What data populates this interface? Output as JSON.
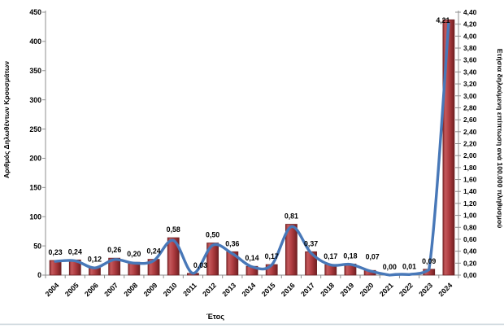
{
  "chart_data": {
    "type": "bar",
    "subtype": "combo-bar-line-dual-axis",
    "title": "",
    "xlabel": "Έτος",
    "categories": [
      "2004",
      "2005",
      "2006",
      "2007",
      "2008",
      "2009",
      "2010",
      "2011",
      "2012",
      "2013",
      "2014",
      "2015",
      "2016",
      "2017",
      "2018",
      "2019",
      "2020",
      "2021",
      "2022",
      "2023",
      "2024"
    ],
    "series": [
      {
        "name": "Αριθμός Δηλωθέντων Κρουσμάτων",
        "type": "bar",
        "axis": "left",
        "values": [
          25,
          26,
          13,
          29,
          22,
          27,
          64,
          3,
          55,
          40,
          15,
          18,
          87,
          40,
          18,
          19,
          8,
          0,
          1,
          10,
          437
        ]
      },
      {
        "name": "Ετήσια δηλούμενη επίπτωση ανά 100.000 πληθυσμού",
        "type": "line",
        "axis": "right",
        "values": [
          0.23,
          0.24,
          0.12,
          0.26,
          0.2,
          0.24,
          0.58,
          0.03,
          0.5,
          0.36,
          0.14,
          0.17,
          0.81,
          0.37,
          0.17,
          0.18,
          0.07,
          0.0,
          0.01,
          0.09,
          4.21
        ]
      }
    ],
    "point_labels": [
      "0,23",
      "0,24",
      "0,12",
      "0,26",
      "0,20",
      "0,24",
      "0,58",
      "0,03",
      "0,50",
      "0,36",
      "0,14",
      "0,17",
      "0,81",
      "0,37",
      "0,17",
      "0,18",
      "0,07",
      "0,00",
      "0,01",
      "0,09",
      "4,21"
    ],
    "left_axis": {
      "title": "Αριθμός Δηλωθέντων Κρουσμάτων",
      "min": 0,
      "max": 450,
      "step": 50,
      "tick_labels": [
        "0",
        "50",
        "100",
        "150",
        "200",
        "250",
        "300",
        "350",
        "400",
        "450"
      ]
    },
    "right_axis": {
      "title": "Ετήσια δηλούμενη επίπτωση ανά 100.000 πληθυσμού",
      "min": 0,
      "max": 4.4,
      "step": 0.2,
      "tick_labels": [
        "0,00",
        "0,20",
        "0,40",
        "0,60",
        "0,80",
        "1,00",
        "1,20",
        "1,40",
        "1,60",
        "1,80",
        "2,00",
        "2,20",
        "2,40",
        "2,60",
        "2,80",
        "3,00",
        "3,20",
        "3,40",
        "3,60",
        "3,80",
        "4,00",
        "4,20",
        "4,40"
      ]
    },
    "grid": false,
    "legend": "none",
    "colors": {
      "bar_fill": "#B23F43",
      "bar_fill_light": "#C45A5D",
      "bar_fill_dark": "#8B2A2D",
      "bar_border": "#6E2023",
      "line": "#4878B8",
      "axis": "#8F8F8F",
      "bottom_rule": "#CBD6DC",
      "text": "#000000"
    }
  }
}
